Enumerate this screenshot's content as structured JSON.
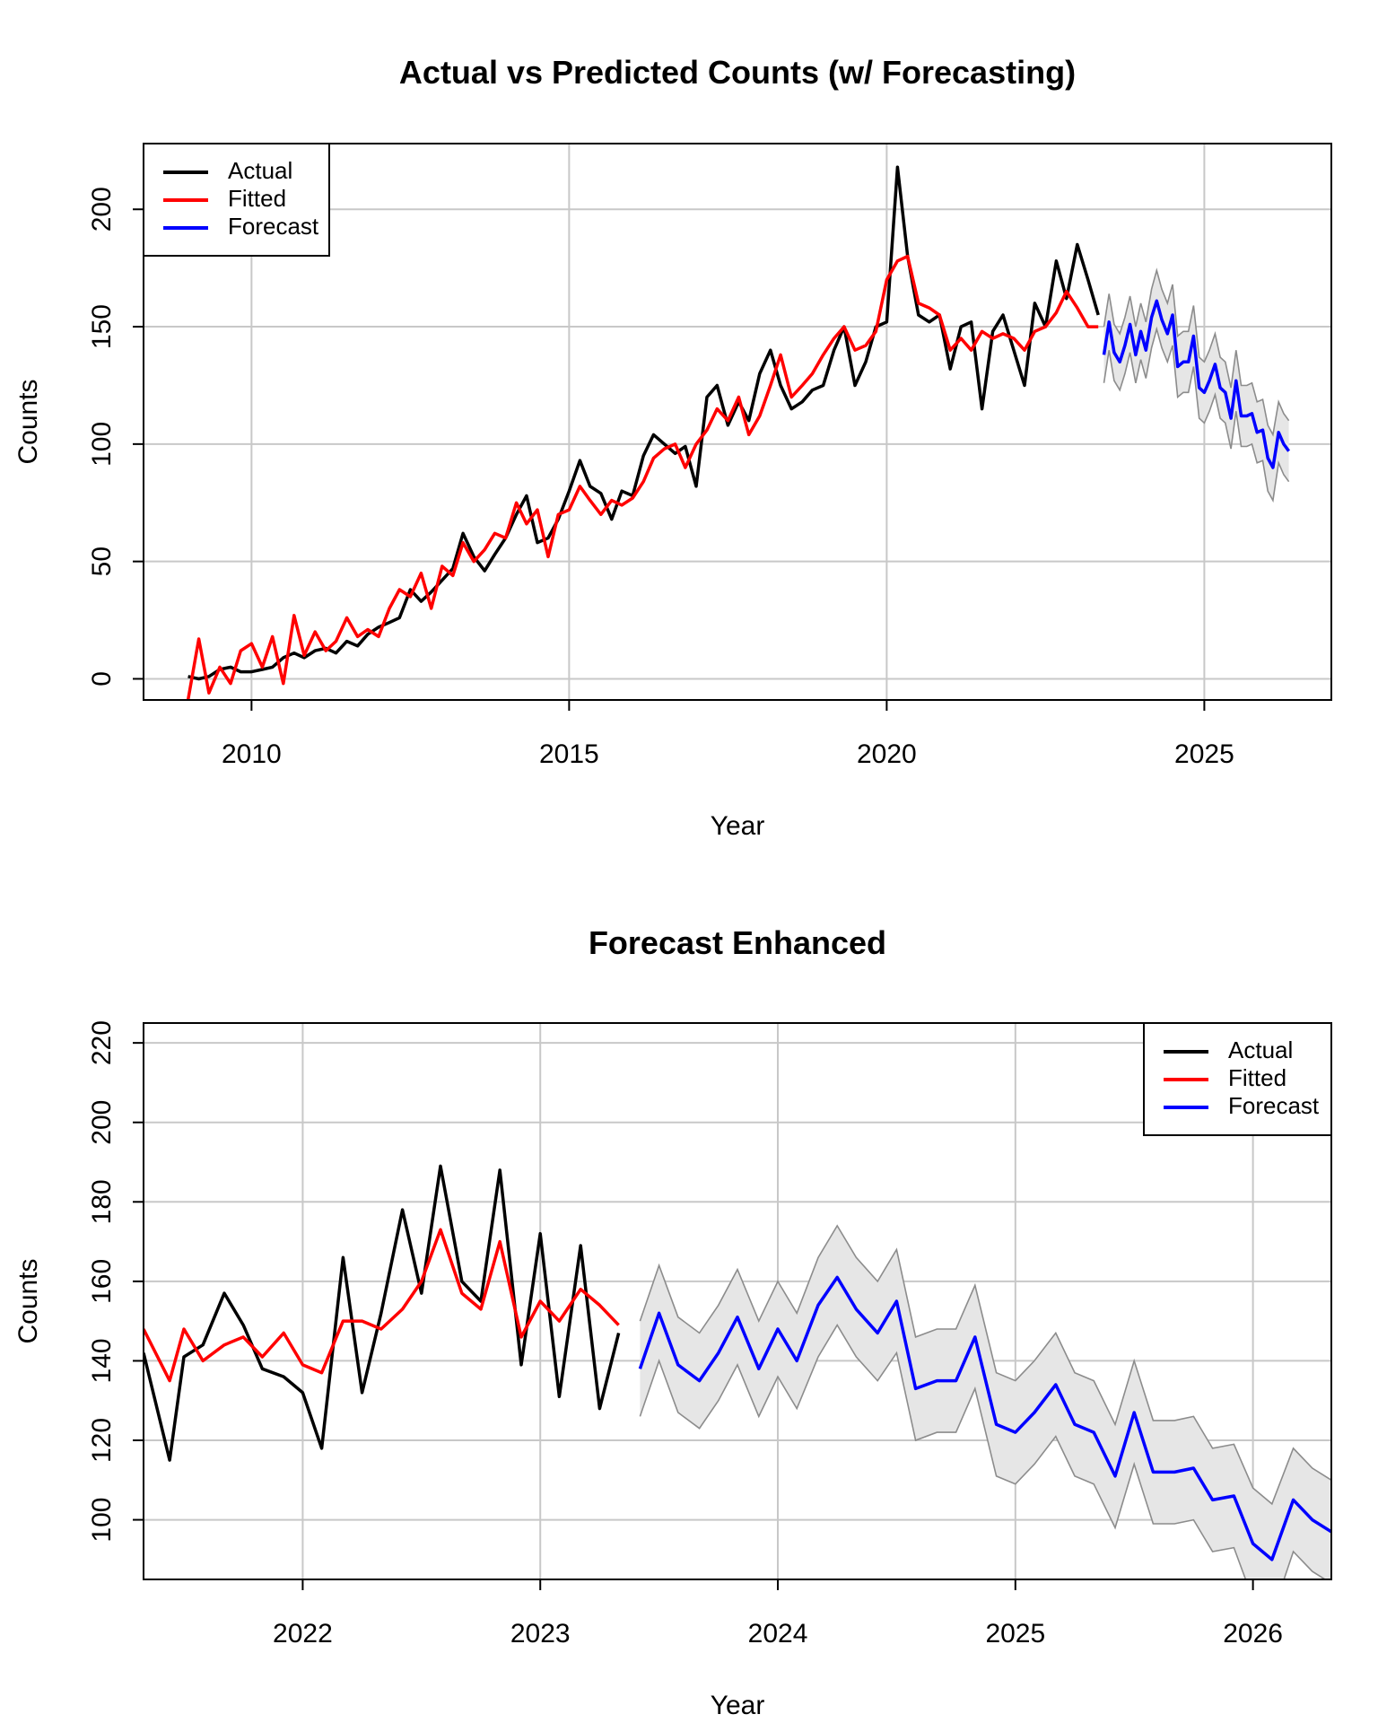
{
  "chart_data": [
    {
      "type": "line",
      "title": "Actual vs Predicted Counts (w/ Forecasting)",
      "xlabel": "Year",
      "ylabel": "Counts",
      "xlim": [
        2008.3,
        2027.0
      ],
      "ylim": [
        -9,
        228
      ],
      "xticks": [
        2010,
        2015,
        2020,
        2025
      ],
      "yticks": [
        0,
        50,
        100,
        150,
        200
      ],
      "grid": true,
      "legend_position": "top-left",
      "legend": [
        "Actual",
        "Fitted",
        "Forecast"
      ],
      "series": [
        {
          "name": "Actual",
          "color": "#000000",
          "x": [
            2009.0,
            2009.17,
            2009.33,
            2009.5,
            2009.67,
            2009.83,
            2010.0,
            2010.17,
            2010.33,
            2010.5,
            2010.67,
            2010.83,
            2011.0,
            2011.17,
            2011.33,
            2011.5,
            2011.67,
            2011.83,
            2012.0,
            2012.17,
            2012.33,
            2012.5,
            2012.67,
            2012.83,
            2013.0,
            2013.17,
            2013.33,
            2013.5,
            2013.67,
            2013.83,
            2014.0,
            2014.17,
            2014.33,
            2014.5,
            2014.67,
            2014.83,
            2015.0,
            2015.17,
            2015.33,
            2015.5,
            2015.67,
            2015.83,
            2016.0,
            2016.17,
            2016.33,
            2016.5,
            2016.67,
            2016.83,
            2017.0,
            2017.17,
            2017.33,
            2017.5,
            2017.67,
            2017.83,
            2018.0,
            2018.17,
            2018.33,
            2018.5,
            2018.67,
            2018.83,
            2019.0,
            2019.17,
            2019.33,
            2019.5,
            2019.67,
            2019.83,
            2020.0,
            2020.17,
            2020.33,
            2020.5,
            2020.67,
            2020.83,
            2021.0,
            2021.17,
            2021.33,
            2021.5,
            2021.67,
            2021.83,
            2022.0,
            2022.17,
            2022.33,
            2022.5,
            2022.67,
            2022.83,
            2023.0,
            2023.17,
            2023.33
          ],
          "values": [
            1,
            0,
            1,
            4,
            5,
            3,
            3,
            4,
            5,
            9,
            11,
            9,
            12,
            13,
            11,
            16,
            14,
            19,
            22,
            24,
            26,
            38,
            33,
            37,
            42,
            47,
            62,
            52,
            46,
            53,
            60,
            70,
            78,
            58,
            60,
            68,
            80,
            93,
            82,
            79,
            68,
            80,
            78,
            95,
            104,
            100,
            96,
            99,
            82,
            120,
            125,
            108,
            118,
            110,
            130,
            140,
            125,
            115,
            118,
            123,
            125,
            140,
            150,
            125,
            135,
            150,
            152,
            218,
            180,
            155,
            152,
            155,
            132,
            150,
            152,
            115,
            148,
            155,
            140,
            125,
            160,
            150,
            178,
            162,
            185,
            170,
            155
          ]
        },
        {
          "name": "Fitted",
          "color": "#ff0000",
          "x": [
            2009.0,
            2009.17,
            2009.33,
            2009.5,
            2009.67,
            2009.83,
            2010.0,
            2010.17,
            2010.33,
            2010.5,
            2010.67,
            2010.83,
            2011.0,
            2011.17,
            2011.33,
            2011.5,
            2011.67,
            2011.83,
            2012.0,
            2012.17,
            2012.33,
            2012.5,
            2012.67,
            2012.83,
            2013.0,
            2013.17,
            2013.33,
            2013.5,
            2013.67,
            2013.83,
            2014.0,
            2014.17,
            2014.33,
            2014.5,
            2014.67,
            2014.83,
            2015.0,
            2015.17,
            2015.33,
            2015.5,
            2015.67,
            2015.83,
            2016.0,
            2016.17,
            2016.33,
            2016.5,
            2016.67,
            2016.83,
            2017.0,
            2017.17,
            2017.33,
            2017.5,
            2017.67,
            2017.83,
            2018.0,
            2018.17,
            2018.33,
            2018.5,
            2018.67,
            2018.83,
            2019.0,
            2019.17,
            2019.33,
            2019.5,
            2019.67,
            2019.83,
            2020.0,
            2020.17,
            2020.33,
            2020.5,
            2020.67,
            2020.83,
            2021.0,
            2021.17,
            2021.33,
            2021.5,
            2021.67,
            2021.83,
            2022.0,
            2022.17,
            2022.33,
            2022.5,
            2022.67,
            2022.83,
            2023.0,
            2023.17,
            2023.33
          ],
          "values": [
            -9,
            17,
            -6,
            5,
            -2,
            12,
            15,
            5,
            18,
            -2,
            27,
            10,
            20,
            12,
            16,
            26,
            18,
            21,
            18,
            30,
            38,
            35,
            45,
            30,
            48,
            44,
            58,
            50,
            55,
            62,
            60,
            75,
            66,
            72,
            52,
            70,
            72,
            82,
            76,
            70,
            76,
            74,
            77,
            84,
            94,
            98,
            100,
            90,
            100,
            106,
            115,
            110,
            120,
            104,
            112,
            125,
            138,
            120,
            125,
            130,
            138,
            145,
            150,
            140,
            142,
            148,
            170,
            178,
            180,
            160,
            158,
            155,
            140,
            145,
            140,
            148,
            145,
            147,
            145,
            140,
            148,
            150,
            156,
            165,
            158,
            150,
            150
          ]
        },
        {
          "name": "Forecast",
          "color": "#0000ff",
          "x": [
            2023.42,
            2023.5,
            2023.58,
            2023.67,
            2023.75,
            2023.83,
            2023.92,
            2024.0,
            2024.08,
            2024.17,
            2024.25,
            2024.33,
            2024.42,
            2024.5,
            2024.58,
            2024.67,
            2024.75,
            2024.83,
            2024.92,
            2025.0,
            2025.08,
            2025.17,
            2025.25,
            2025.33,
            2025.42,
            2025.5,
            2025.58,
            2025.67,
            2025.75,
            2025.83,
            2025.92,
            2026.0,
            2026.08,
            2026.17,
            2026.25,
            2026.33
          ],
          "values": [
            138,
            152,
            139,
            135,
            142,
            151,
            138,
            148,
            140,
            154,
            161,
            153,
            147,
            155,
            133,
            135,
            135,
            146,
            124,
            122,
            127,
            134,
            124,
            122,
            111,
            127,
            112,
            112,
            113,
            105,
            106,
            94,
            90,
            105,
            100,
            97
          ],
          "upper": [
            150,
            164,
            151,
            147,
            154,
            163,
            150,
            160,
            152,
            166,
            174,
            166,
            160,
            168,
            146,
            148,
            148,
            159,
            137,
            135,
            140,
            147,
            137,
            135,
            124,
            140,
            125,
            125,
            126,
            118,
            119,
            108,
            104,
            118,
            113,
            110
          ],
          "lower": [
            126,
            140,
            127,
            123,
            130,
            139,
            126,
            136,
            128,
            141,
            149,
            141,
            135,
            142,
            120,
            122,
            122,
            133,
            111,
            109,
            114,
            121,
            111,
            109,
            98,
            114,
            99,
            99,
            100,
            92,
            93,
            80,
            76,
            92,
            87,
            84
          ]
        }
      ]
    },
    {
      "type": "line",
      "title": "Forecast Enhanced",
      "xlabel": "Year",
      "ylabel": "Counts",
      "xlim": [
        2021.33,
        2026.33
      ],
      "ylim": [
        85,
        225
      ],
      "xticks": [
        2022,
        2023,
        2024,
        2025,
        2026
      ],
      "yticks": [
        100,
        120,
        140,
        160,
        180,
        200,
        220
      ],
      "grid": true,
      "legend_position": "top-right",
      "legend": [
        "Actual",
        "Fitted",
        "Forecast"
      ],
      "series": [
        {
          "name": "Actual",
          "color": "#000000",
          "x": [
            2021.33,
            2021.44,
            2021.5,
            2021.58,
            2021.67,
            2021.75,
            2021.83,
            2021.92,
            2022.0,
            2022.08,
            2022.17,
            2022.25,
            2022.33,
            2022.42,
            2022.5,
            2022.58,
            2022.67,
            2022.75,
            2022.83,
            2022.92,
            2023.0,
            2023.08,
            2023.17,
            2023.25,
            2023.33
          ],
          "values": [
            142,
            115,
            141,
            144,
            157,
            149,
            138,
            136,
            132,
            118,
            166,
            132,
            152,
            178,
            157,
            189,
            160,
            155,
            188,
            139,
            172,
            131,
            169,
            128,
            147
          ]
        },
        {
          "name": "Fitted",
          "color": "#ff0000",
          "x": [
            2021.33,
            2021.44,
            2021.5,
            2021.58,
            2021.67,
            2021.75,
            2021.83,
            2021.92,
            2022.0,
            2022.08,
            2022.17,
            2022.25,
            2022.33,
            2022.42,
            2022.5,
            2022.58,
            2022.67,
            2022.75,
            2022.83,
            2022.92,
            2023.0,
            2023.08,
            2023.17,
            2023.25,
            2023.33
          ],
          "values": [
            148,
            135,
            148,
            140,
            144,
            146,
            141,
            147,
            139,
            137,
            150,
            150,
            148,
            153,
            160,
            173,
            157,
            153,
            170,
            146,
            155,
            150,
            158,
            154,
            149
          ]
        },
        {
          "name": "Forecast",
          "color": "#0000ff",
          "x": [
            2023.42,
            2023.5,
            2023.58,
            2023.67,
            2023.75,
            2023.83,
            2023.92,
            2024.0,
            2024.08,
            2024.17,
            2024.25,
            2024.33,
            2024.42,
            2024.5,
            2024.58,
            2024.67,
            2024.75,
            2024.83,
            2024.92,
            2025.0,
            2025.08,
            2025.17,
            2025.25,
            2025.33,
            2025.42,
            2025.5,
            2025.58,
            2025.67,
            2025.75,
            2025.83,
            2025.92,
            2026.0,
            2026.08,
            2026.17,
            2026.25,
            2026.33
          ],
          "values": [
            138,
            152,
            139,
            135,
            142,
            151,
            138,
            148,
            140,
            154,
            161,
            153,
            147,
            155,
            133,
            135,
            135,
            146,
            124,
            122,
            127,
            134,
            124,
            122,
            111,
            127,
            112,
            112,
            113,
            105,
            106,
            94,
            90,
            105,
            100,
            97
          ],
          "upper": [
            150,
            164,
            151,
            147,
            154,
            163,
            150,
            160,
            152,
            166,
            174,
            166,
            160,
            168,
            146,
            148,
            148,
            159,
            137,
            135,
            140,
            147,
            137,
            135,
            124,
            140,
            125,
            125,
            126,
            118,
            119,
            108,
            104,
            118,
            113,
            110
          ],
          "lower": [
            126,
            140,
            127,
            123,
            130,
            139,
            126,
            136,
            128,
            141,
            149,
            141,
            135,
            142,
            120,
            122,
            122,
            133,
            111,
            109,
            114,
            121,
            111,
            109,
            98,
            114,
            99,
            99,
            100,
            92,
            93,
            80,
            76,
            92,
            87,
            84
          ]
        }
      ]
    }
  ],
  "colors": {
    "actual": "#000000",
    "fitted": "#ff0000",
    "forecast": "#0000ff",
    "band_fill": "#e6e6e6",
    "band_edge": "#8c8c8c",
    "grid": "#c8c8c8"
  }
}
